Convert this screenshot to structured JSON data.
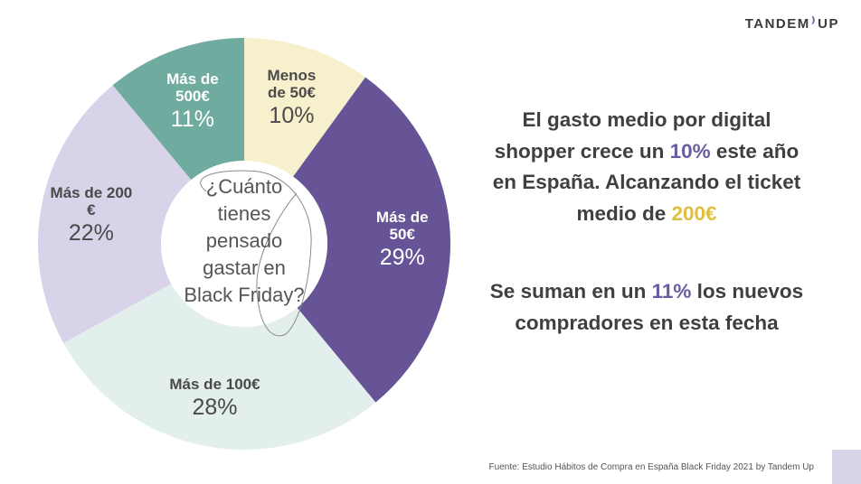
{
  "logo": {
    "text_left": "TANDEM",
    "text_right": "UP"
  },
  "chart_data": {
    "type": "pie",
    "center_question": [
      "¿Cuánto",
      "tienes",
      "pensado",
      "gastar en",
      "Black Friday?"
    ],
    "slices": [
      {
        "label": [
          "Menos",
          "de 50€"
        ],
        "value": 10,
        "value_label": "10%",
        "color": "#f7f0cc",
        "text_color": "#4a4a4a"
      },
      {
        "label": [
          "Más de",
          "50€"
        ],
        "value": 29,
        "value_label": "29%",
        "color": "#665496",
        "text_color": "#ffffff"
      },
      {
        "label": [
          "Más de 100€"
        ],
        "value": 28,
        "value_label": "28%",
        "color": "#e2efed",
        "text_color": "#4a4a4a"
      },
      {
        "label": [
          "Más de 200",
          "€"
        ],
        "value": 22,
        "value_label": "22%",
        "color": "#d8d3e8",
        "text_color": "#4a4a4a"
      },
      {
        "label": [
          "Más de",
          "500€"
        ],
        "value": 11,
        "value_label": "11%",
        "color": "#6fab9f",
        "text_color": "#ffffff"
      }
    ]
  },
  "headline": {
    "part1": "El gasto medio por digital shopper crece un ",
    "highlight1": "10%",
    "part2": " este año en España. Alcanzando el ticket medio de ",
    "highlight2": "200€"
  },
  "headline2": {
    "part1": "Se suman en un ",
    "highlight": "11%",
    "part2": " los nuevos compradores en esta fecha"
  },
  "source": "Fuente: Estudio Hábitos de Compra en España Black Friday 2021 by Tandem Up",
  "colors": {
    "purple": "#6a5aa1",
    "yellow": "#e0bf3f",
    "corner": "#d9d3e9"
  }
}
